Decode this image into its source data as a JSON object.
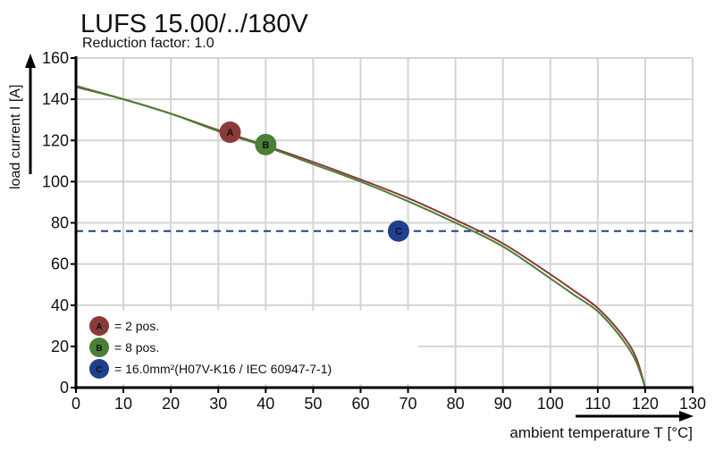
{
  "chart_data": {
    "type": "line",
    "title": "LUFS 15.00/../180V",
    "subtitle": "Reduction factor: 1.0",
    "xlabel": "ambient temperature T [°C]",
    "ylabel": "load current  I [A]",
    "xlim": [
      0,
      130
    ],
    "ylim": [
      0,
      160
    ],
    "xticks": [
      0,
      10,
      20,
      30,
      40,
      50,
      60,
      70,
      80,
      90,
      100,
      110,
      120,
      130
    ],
    "yticks": [
      0,
      20,
      40,
      60,
      80,
      100,
      120,
      140,
      160
    ],
    "grid": true,
    "legend_position": "bottom-left",
    "series": [
      {
        "marker": "A",
        "color": "#8b3a3a",
        "points": [
          [
            0,
            146
          ],
          [
            10,
            140
          ],
          [
            20,
            133
          ],
          [
            30,
            125
          ],
          [
            40,
            117.5
          ],
          [
            50,
            109.5
          ],
          [
            60,
            101
          ],
          [
            70,
            92
          ],
          [
            80,
            81.5
          ],
          [
            90,
            70
          ],
          [
            100,
            55
          ],
          [
            105,
            47
          ],
          [
            110,
            38.6
          ],
          [
            115,
            26
          ],
          [
            118,
            15
          ],
          [
            120,
            0
          ]
        ]
      },
      {
        "marker": "B",
        "color": "#4a7f35",
        "points": [
          [
            0,
            146.5
          ],
          [
            10,
            140
          ],
          [
            20,
            133
          ],
          [
            30,
            124.5
          ],
          [
            40,
            117
          ],
          [
            50,
            108.5
          ],
          [
            60,
            100
          ],
          [
            70,
            90.5
          ],
          [
            80,
            80
          ],
          [
            90,
            68.5
          ],
          [
            100,
            53
          ],
          [
            105,
            45
          ],
          [
            110,
            37
          ],
          [
            115,
            24
          ],
          [
            118,
            13
          ],
          [
            120,
            0
          ]
        ]
      }
    ],
    "reference_line": {
      "marker": "C",
      "y": 76,
      "color": "#1f3f8f",
      "style": "dashed"
    },
    "markers": [
      {
        "label": "A",
        "x": 32.5,
        "y": 124,
        "color": "#8b3a3a"
      },
      {
        "label": "B",
        "x": 40,
        "y": 118,
        "color": "#4a7f35"
      },
      {
        "label": "C",
        "x": 68,
        "y": 76,
        "color": "#1f3f8f"
      }
    ],
    "legend": [
      {
        "label": "A",
        "text": "= 2 pos.",
        "color": "#8b3a3a"
      },
      {
        "label": "B",
        "text": "= 8 pos.",
        "color": "#4a7f35"
      },
      {
        "label": "C",
        "text": "= 16.0mm²(H07V-K16 / IEC 60947-7-1)",
        "color": "#1f3f8f"
      }
    ]
  }
}
